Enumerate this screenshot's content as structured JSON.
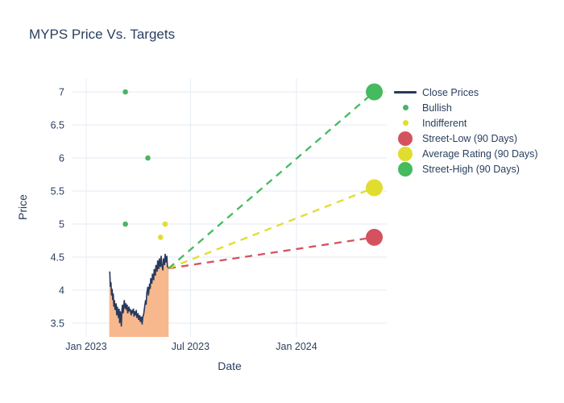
{
  "chart_data": {
    "type": "line",
    "title": "MYPS Price Vs. Targets",
    "xlabel": "Date",
    "ylabel": "Price",
    "colors": {
      "text": "#2a3f5f",
      "grid": "#e9eef6",
      "close_line": "#283a5c",
      "close_fill": "#f8b88e",
      "bullish": "#4bb462",
      "indifferent": "#e1dd2e",
      "street_low": "#d4525f",
      "average_rating": "#e1dd2e",
      "street_high": "#45ba5e"
    },
    "x_axis": {
      "tick_labels": [
        "Jan 2023",
        "Jul 2023",
        "Jan 2024"
      ],
      "tick_days": [
        0,
        181,
        365
      ],
      "day_zero": "2023-01-01"
    },
    "y_axis": {
      "ticks": [
        3.5,
        4,
        4.5,
        5,
        5.5,
        6,
        6.5,
        7
      ],
      "range": [
        3.3,
        7.2
      ]
    },
    "close_prices": {
      "name": "Close Prices",
      "days": [
        40,
        41,
        42,
        43,
        44,
        45,
        46,
        47,
        48,
        49,
        50,
        52,
        53,
        54,
        55,
        56,
        57,
        58,
        59,
        60,
        61,
        62,
        63,
        64,
        65,
        66,
        68,
        69,
        70,
        71,
        72,
        74,
        75,
        76,
        78,
        79,
        80,
        82,
        83,
        84,
        86,
        87,
        88,
        90,
        91,
        93,
        94,
        96,
        97,
        98,
        100,
        101,
        103,
        104,
        105,
        107,
        108,
        110,
        111,
        112,
        114,
        115,
        117,
        118,
        120,
        121,
        123,
        124,
        126,
        127,
        129,
        130,
        131,
        133,
        134,
        136,
        137,
        138,
        140,
        141,
        143
      ],
      "prices": [
        4.28,
        4.27,
        4.05,
        4.12,
        3.92,
        4.02,
        3.85,
        3.95,
        3.75,
        3.85,
        3.7,
        3.8,
        3.62,
        3.75,
        3.68,
        3.58,
        3.72,
        3.5,
        3.68,
        3.62,
        3.45,
        3.7,
        3.78,
        3.65,
        3.72,
        3.85,
        3.72,
        3.8,
        3.7,
        3.78,
        3.65,
        3.75,
        3.68,
        3.72,
        3.62,
        3.7,
        3.65,
        3.72,
        3.6,
        3.68,
        3.62,
        3.7,
        3.58,
        3.65,
        3.55,
        3.62,
        3.52,
        3.6,
        3.48,
        3.58,
        3.65,
        3.72,
        3.85,
        3.78,
        3.95,
        4.05,
        3.92,
        4.1,
        4.02,
        4.18,
        4.1,
        4.25,
        4.15,
        4.32,
        4.22,
        4.38,
        4.28,
        4.45,
        4.32,
        4.48,
        4.35,
        4.52,
        4.4,
        4.3,
        4.48,
        4.38,
        4.55,
        4.42,
        4.52,
        4.36,
        4.33
      ]
    },
    "ratings": {
      "bullish": {
        "name": "Bullish",
        "points": [
          {
            "day": 68,
            "price": 7.0
          },
          {
            "day": 107,
            "price": 6.0
          },
          {
            "day": 68,
            "price": 5.0
          }
        ]
      },
      "indifferent": {
        "name": "Indifferent",
        "points": [
          {
            "day": 137,
            "price": 5.0
          },
          {
            "day": 129,
            "price": 4.8
          }
        ]
      }
    },
    "targets": {
      "projection_day": 500,
      "last_close_day": 143,
      "last_close_price": 4.33,
      "street_low": {
        "label": "Street-Low (90 Days)",
        "value": 4.8
      },
      "average": {
        "label": "Average Rating (90 Days)",
        "value": 5.55
      },
      "street_high": {
        "label": "Street-High (90 Days)",
        "value": 7.0
      }
    },
    "legend": [
      {
        "label": "Close Prices",
        "type": "line",
        "color": "#283a5c"
      },
      {
        "label": "Bullish",
        "type": "dot",
        "color": "#4bb462"
      },
      {
        "label": "Indifferent",
        "type": "dot",
        "color": "#e1dd2e"
      },
      {
        "label": "Street-Low (90 Days)",
        "type": "big-dot",
        "color": "#d4525f"
      },
      {
        "label": "Average Rating (90 Days)",
        "type": "big-dot",
        "color": "#e1dd2e"
      },
      {
        "label": "Street-High (90 Days)",
        "type": "big-dot",
        "color": "#45ba5e"
      }
    ]
  }
}
